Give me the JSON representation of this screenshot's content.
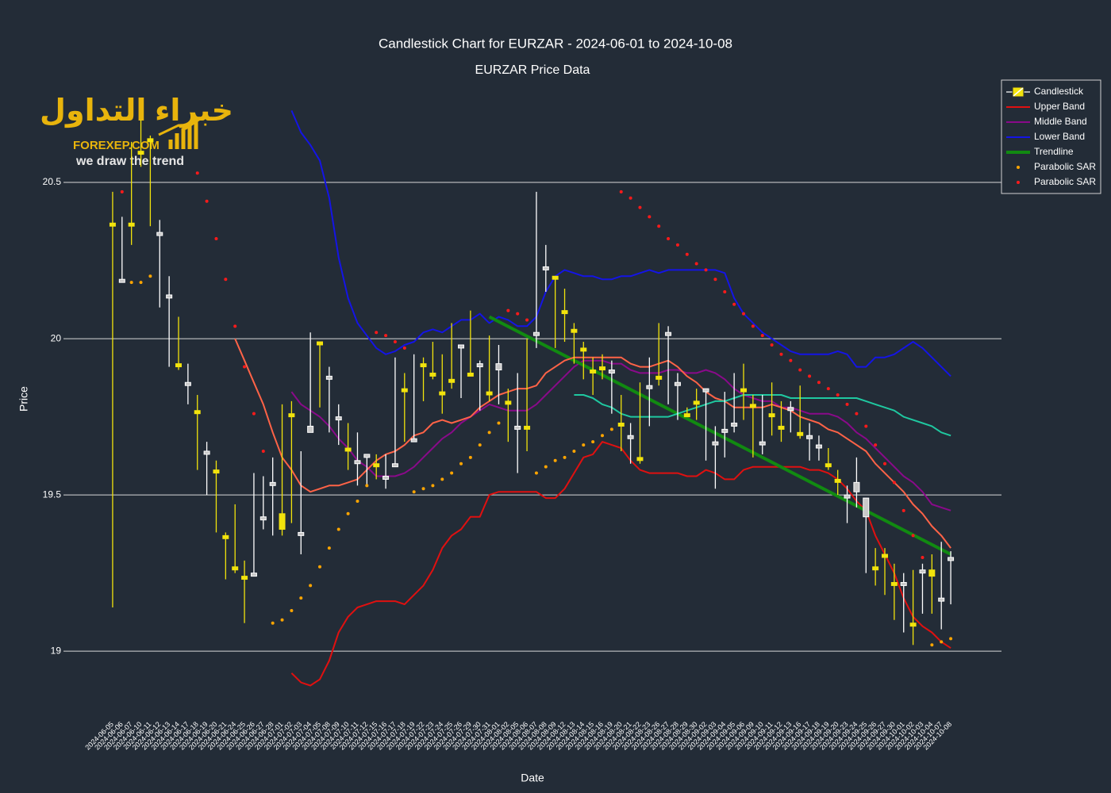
{
  "chart_data": {
    "type": "candlestick",
    "title": "Candlestick Chart for EURZAR - 2024-06-01 to 2024-10-08",
    "subtitle": "EURZAR Price Data",
    "xlabel": "Date",
    "ylabel": "Price",
    "watermark": [
      "خبراء التداول",
      "FOREXEP.COM",
      "we draw the trend"
    ],
    "ylim": [
      18.8,
      20.83
    ],
    "yticks": [
      19,
      19.5,
      20,
      20.5
    ],
    "grid": true,
    "legend_position": "top-right",
    "categories": [
      "2024-06-05",
      "2024-06-06",
      "2024-06-07",
      "2024-06-10",
      "2024-06-11",
      "2024-06-12",
      "2024-06-13",
      "2024-06-14",
      "2024-06-17",
      "2024-06-18",
      "2024-06-19",
      "2024-06-20",
      "2024-06-21",
      "2024-06-24",
      "2024-06-25",
      "2024-06-26",
      "2024-06-27",
      "2024-06-28",
      "2024-07-01",
      "2024-07-02",
      "2024-07-03",
      "2024-07-04",
      "2024-07-05",
      "2024-07-08",
      "2024-07-09",
      "2024-07-10",
      "2024-07-11",
      "2024-07-12",
      "2024-07-15",
      "2024-07-16",
      "2024-07-17",
      "2024-07-18",
      "2024-07-19",
      "2024-07-22",
      "2024-07-23",
      "2024-07-24",
      "2024-07-25",
      "2024-07-26",
      "2024-07-29",
      "2024-07-30",
      "2024-07-31",
      "2024-08-01",
      "2024-08-02",
      "2024-08-05",
      "2024-08-06",
      "2024-08-07",
      "2024-08-08",
      "2024-08-09",
      "2024-08-12",
      "2024-08-13",
      "2024-08-14",
      "2024-08-15",
      "2024-08-16",
      "2024-08-19",
      "2024-08-20",
      "2024-08-21",
      "2024-08-22",
      "2024-08-23",
      "2024-08-26",
      "2024-08-27",
      "2024-08-28",
      "2024-08-29",
      "2024-08-30",
      "2024-09-02",
      "2024-09-03",
      "2024-09-04",
      "2024-09-05",
      "2024-09-06",
      "2024-09-09",
      "2024-09-10",
      "2024-09-11",
      "2024-09-12",
      "2024-09-13",
      "2024-09-16",
      "2024-09-17",
      "2024-09-18",
      "2024-09-19",
      "2024-09-20",
      "2024-09-23",
      "2024-09-24",
      "2024-09-25",
      "2024-09-26",
      "2024-09-27",
      "2024-09-30",
      "2024-10-01",
      "2024-10-02",
      "2024-10-03",
      "2024-10-04",
      "2024-10-07",
      "2024-10-08"
    ],
    "candles": {
      "name": "Candlestick",
      "increasing_color": "#f2e30c",
      "decreasing_color": "#ffffff",
      "open": [
        20.36,
        20.19,
        20.36,
        20.59,
        20.63,
        20.34,
        20.14,
        19.91,
        19.86,
        19.76,
        19.64,
        19.57,
        19.36,
        19.26,
        19.23,
        19.25,
        19.43,
        19.54,
        19.39,
        19.75,
        19.38,
        19.72,
        19.98,
        19.88,
        19.75,
        19.64,
        19.61,
        19.63,
        19.59,
        19.56,
        19.6,
        19.83,
        19.68,
        19.91,
        19.88,
        19.82,
        19.86,
        19.98,
        19.88,
        19.92,
        19.82,
        19.92,
        19.79,
        19.72,
        19.71,
        20.02,
        20.23,
        20.19,
        20.08,
        20.02,
        19.96,
        19.89,
        19.9,
        19.9,
        19.72,
        19.69,
        19.61,
        19.85,
        19.87,
        20.02,
        19.86,
        19.75,
        19.79,
        19.84,
        19.67,
        19.71,
        19.73,
        19.83,
        19.78,
        19.67,
        19.75,
        19.71,
        19.78,
        19.69,
        19.69,
        19.66,
        19.59,
        19.54,
        19.5,
        19.54,
        19.49,
        19.26,
        19.3,
        19.21,
        19.22,
        19.08,
        19.26,
        19.24,
        19.17,
        19.3
      ],
      "high": [
        20.47,
        20.39,
        20.63,
        20.7,
        20.65,
        20.38,
        20.2,
        20.07,
        19.92,
        19.82,
        19.67,
        19.61,
        19.38,
        19.47,
        19.29,
        19.57,
        19.56,
        19.62,
        19.79,
        19.8,
        19.64,
        20.02,
        19.99,
        19.91,
        19.79,
        19.73,
        19.7,
        19.63,
        19.63,
        19.63,
        19.94,
        19.89,
        19.95,
        19.94,
        19.99,
        19.95,
        20.05,
        19.98,
        20.09,
        19.93,
        20.01,
        19.98,
        19.84,
        19.89,
        20.0,
        20.47,
        20.3,
        20.2,
        20.16,
        20.05,
        19.99,
        19.94,
        19.95,
        19.93,
        19.82,
        19.73,
        19.86,
        19.94,
        20.05,
        20.04,
        19.89,
        19.78,
        19.84,
        19.84,
        19.72,
        19.83,
        19.89,
        19.92,
        19.82,
        19.82,
        19.86,
        19.8,
        19.8,
        19.85,
        19.73,
        19.69,
        19.65,
        19.58,
        19.53,
        19.62,
        19.49,
        19.33,
        19.33,
        19.28,
        19.25,
        19.26,
        19.28,
        19.31,
        19.35,
        19.32
      ],
      "low": [
        19.14,
        20.18,
        20.3,
        20.55,
        20.36,
        20.1,
        19.91,
        19.9,
        19.79,
        19.58,
        19.5,
        19.38,
        19.23,
        19.25,
        19.09,
        19.24,
        19.39,
        19.37,
        19.37,
        19.41,
        19.31,
        19.7,
        19.78,
        19.7,
        19.66,
        19.58,
        19.53,
        19.53,
        19.55,
        19.52,
        19.59,
        19.67,
        19.67,
        19.8,
        19.87,
        19.76,
        19.84,
        19.81,
        19.88,
        19.77,
        19.8,
        19.79,
        19.67,
        19.57,
        19.64,
        19.97,
        20.15,
        19.97,
        19.99,
        19.92,
        19.87,
        19.82,
        19.87,
        19.76,
        19.64,
        19.6,
        19.6,
        19.72,
        19.85,
        19.79,
        19.74,
        19.75,
        19.74,
        19.61,
        19.52,
        19.62,
        19.7,
        19.74,
        19.62,
        19.63,
        19.69,
        19.67,
        19.7,
        19.68,
        19.61,
        19.61,
        19.58,
        19.5,
        19.41,
        19.46,
        19.25,
        19.21,
        19.18,
        19.1,
        19.06,
        19.02,
        19.12,
        19.12,
        19.07,
        19.15
      ],
      "close": [
        20.37,
        20.18,
        20.37,
        20.6,
        20.64,
        20.33,
        20.13,
        19.92,
        19.85,
        19.77,
        19.63,
        19.58,
        19.37,
        19.27,
        19.24,
        19.24,
        19.42,
        19.53,
        19.44,
        19.76,
        19.37,
        19.7,
        19.99,
        19.87,
        19.74,
        19.65,
        19.6,
        19.62,
        19.6,
        19.55,
        19.59,
        19.84,
        19.67,
        19.92,
        19.89,
        19.83,
        19.87,
        19.97,
        19.89,
        19.91,
        19.83,
        19.9,
        19.8,
        19.71,
        19.72,
        20.01,
        20.22,
        20.2,
        20.09,
        20.03,
        19.97,
        19.9,
        19.91,
        19.89,
        19.73,
        19.68,
        19.62,
        19.84,
        19.88,
        20.01,
        19.85,
        19.76,
        19.8,
        19.83,
        19.66,
        19.7,
        19.72,
        19.84,
        19.79,
        19.66,
        19.76,
        19.72,
        19.77,
        19.7,
        19.68,
        19.65,
        19.6,
        19.55,
        19.49,
        19.51,
        19.43,
        19.27,
        19.31,
        19.22,
        19.21,
        19.09,
        19.25,
        19.26,
        19.16,
        19.29
      ]
    },
    "series": [
      {
        "name": "Upper Band",
        "color": "#e01010",
        "mode": "lines",
        "values": [
          null,
          null,
          null,
          null,
          null,
          null,
          null,
          null,
          null,
          null,
          null,
          null,
          null,
          null,
          null,
          null,
          null,
          null,
          null,
          18.93,
          18.9,
          18.89,
          18.91,
          18.97,
          19.06,
          19.11,
          19.14,
          19.15,
          19.16,
          19.16,
          19.16,
          19.15,
          19.18,
          19.21,
          19.26,
          19.33,
          19.37,
          19.39,
          19.43,
          19.43,
          19.5,
          19.51,
          19.51,
          19.51,
          19.51,
          19.51,
          19.49,
          19.49,
          19.52,
          19.57,
          19.62,
          19.63,
          19.67,
          19.66,
          19.65,
          19.61,
          19.58,
          19.57,
          19.57,
          19.57,
          19.57,
          19.56,
          19.56,
          19.58,
          19.57,
          19.55,
          19.55,
          19.58,
          19.59,
          19.59,
          19.59,
          19.59,
          19.59,
          19.59,
          19.58,
          19.58,
          19.57,
          19.55,
          19.52,
          19.48,
          19.45,
          19.37,
          19.31,
          19.25,
          19.17,
          19.11,
          19.08,
          19.06,
          19.03,
          19.01
        ]
      },
      {
        "name": "Middle Band",
        "color": "#8a0a8a",
        "mode": "lines",
        "values": [
          null,
          null,
          null,
          null,
          null,
          null,
          null,
          null,
          null,
          null,
          null,
          null,
          null,
          null,
          null,
          null,
          null,
          null,
          null,
          19.83,
          19.79,
          19.77,
          19.75,
          19.72,
          19.68,
          19.65,
          19.61,
          19.59,
          19.56,
          19.56,
          19.56,
          19.57,
          19.59,
          19.62,
          19.65,
          19.68,
          19.7,
          19.73,
          19.75,
          19.77,
          19.79,
          19.78,
          19.77,
          19.77,
          19.77,
          19.79,
          19.82,
          19.85,
          19.88,
          19.91,
          19.93,
          19.93,
          19.93,
          19.92,
          19.92,
          19.9,
          19.89,
          19.89,
          19.89,
          19.9,
          19.9,
          19.89,
          19.89,
          19.9,
          19.89,
          19.87,
          19.84,
          19.82,
          19.81,
          19.8,
          19.8,
          19.78,
          19.78,
          19.77,
          19.76,
          19.76,
          19.76,
          19.75,
          19.73,
          19.7,
          19.68,
          19.65,
          19.62,
          19.59,
          19.56,
          19.54,
          19.51,
          19.47,
          19.46,
          19.45
        ]
      },
      {
        "name": "Lower Band",
        "color": "#1414e6",
        "mode": "lines",
        "values": [
          null,
          null,
          null,
          null,
          null,
          null,
          null,
          null,
          null,
          null,
          null,
          null,
          null,
          null,
          null,
          null,
          null,
          null,
          null,
          20.73,
          20.66,
          20.62,
          20.57,
          20.45,
          20.26,
          20.13,
          20.05,
          20.01,
          19.97,
          19.95,
          19.96,
          19.98,
          19.99,
          20.02,
          20.03,
          20.02,
          20.04,
          20.06,
          20.06,
          20.08,
          20.05,
          20.07,
          20.06,
          20.04,
          20.04,
          20.07,
          20.15,
          20.2,
          20.22,
          20.21,
          20.2,
          20.2,
          20.19,
          20.19,
          20.2,
          20.2,
          20.21,
          20.22,
          20.21,
          20.22,
          20.22,
          20.22,
          20.22,
          20.22,
          20.22,
          20.21,
          20.13,
          20.08,
          20.05,
          20.02,
          20.0,
          19.98,
          19.96,
          19.95,
          19.95,
          19.95,
          19.95,
          19.96,
          19.95,
          19.91,
          19.91,
          19.94,
          19.94,
          19.95,
          19.97,
          19.99,
          19.97,
          19.94,
          19.91,
          19.88
        ]
      },
      {
        "name": "Trendline",
        "color": "#118a11",
        "mode": "lines",
        "width": 4,
        "x": [
          "2024-07-31",
          "2024-10-08"
        ],
        "values": [
          20.07,
          19.31
        ]
      },
      {
        "name": "Parabolic SAR",
        "color": "#ffa500",
        "mode": "markers",
        "values": [
          null,
          null,
          20.18,
          20.18,
          20.2,
          null,
          null,
          null,
          null,
          null,
          null,
          null,
          null,
          null,
          null,
          null,
          null,
          19.09,
          19.1,
          19.13,
          19.17,
          19.21,
          19.27,
          19.33,
          19.39,
          19.44,
          19.48,
          19.53,
          null,
          null,
          null,
          null,
          19.51,
          19.52,
          19.53,
          19.55,
          19.57,
          19.6,
          19.62,
          19.66,
          19.7,
          19.73,
          null,
          null,
          null,
          19.57,
          19.59,
          19.61,
          19.62,
          19.64,
          19.66,
          19.67,
          19.69,
          19.71,
          null,
          null,
          null,
          null,
          null,
          null,
          null,
          null,
          null,
          null,
          null,
          null,
          null,
          null,
          null,
          null,
          null,
          null,
          null,
          null,
          null,
          null,
          null,
          null,
          null,
          null,
          null,
          null,
          null,
          null,
          null,
          null,
          null,
          19.02,
          19.03,
          19.04
        ]
      },
      {
        "name": "Parabolic SAR",
        "color": "#ff1a1a",
        "mode": "markers",
        "values": [
          null,
          20.47,
          null,
          null,
          null,
          null,
          null,
          null,
          null,
          20.53,
          20.44,
          20.32,
          20.19,
          20.04,
          19.91,
          19.76,
          19.64,
          null,
          null,
          null,
          null,
          null,
          null,
          null,
          null,
          null,
          null,
          null,
          20.02,
          20.01,
          19.99,
          19.97,
          null,
          null,
          null,
          null,
          null,
          null,
          null,
          null,
          null,
          null,
          20.09,
          20.08,
          20.06,
          null,
          null,
          null,
          null,
          null,
          null,
          null,
          null,
          null,
          20.47,
          20.45,
          20.42,
          20.39,
          20.36,
          20.32,
          20.3,
          20.27,
          20.24,
          20.22,
          20.19,
          20.15,
          20.11,
          20.08,
          20.04,
          20.01,
          19.98,
          19.95,
          19.93,
          19.9,
          19.88,
          19.86,
          19.84,
          19.82,
          19.79,
          19.76,
          19.72,
          19.66,
          19.6,
          19.54,
          19.45,
          19.37,
          19.3,
          null,
          null,
          null
        ]
      },
      {
        "color": "#ff6347",
        "mode": "lines",
        "values": [
          null,
          null,
          null,
          null,
          null,
          null,
          null,
          null,
          null,
          null,
          null,
          null,
          null,
          20.0,
          19.93,
          19.86,
          19.79,
          19.7,
          19.62,
          19.58,
          19.53,
          19.51,
          19.52,
          19.53,
          19.53,
          19.54,
          19.55,
          19.58,
          19.61,
          19.63,
          19.64,
          19.66,
          19.69,
          19.7,
          19.73,
          19.74,
          19.73,
          19.74,
          19.75,
          19.78,
          19.8,
          19.82,
          19.83,
          19.84,
          19.84,
          19.85,
          19.89,
          19.91,
          19.93,
          19.94,
          19.94,
          19.94,
          19.94,
          19.94,
          19.94,
          19.92,
          19.91,
          19.91,
          19.92,
          19.93,
          19.91,
          19.88,
          19.86,
          19.83,
          19.81,
          19.8,
          19.78,
          19.78,
          19.78,
          19.78,
          19.79,
          19.78,
          19.77,
          19.75,
          19.74,
          19.73,
          19.71,
          19.7,
          19.68,
          19.66,
          19.64,
          19.6,
          19.57,
          19.54,
          19.51,
          19.47,
          19.44,
          19.4,
          19.37,
          19.33
        ]
      },
      {
        "color": "#1fc8a0",
        "mode": "lines",
        "values": [
          null,
          null,
          null,
          null,
          null,
          null,
          null,
          null,
          null,
          null,
          null,
          null,
          null,
          null,
          null,
          null,
          null,
          null,
          null,
          null,
          null,
          null,
          null,
          null,
          null,
          null,
          null,
          null,
          null,
          null,
          null,
          null,
          null,
          null,
          null,
          null,
          null,
          null,
          null,
          null,
          null,
          null,
          null,
          null,
          null,
          null,
          null,
          null,
          null,
          19.82,
          19.82,
          19.81,
          19.79,
          19.78,
          19.76,
          19.75,
          19.75,
          19.75,
          19.75,
          19.75,
          19.76,
          19.77,
          19.78,
          19.79,
          19.8,
          19.8,
          19.81,
          19.82,
          19.82,
          19.82,
          19.82,
          19.82,
          19.81,
          19.81,
          19.81,
          19.81,
          19.81,
          19.81,
          19.81,
          19.81,
          19.8,
          19.79,
          19.78,
          19.77,
          19.75,
          19.74,
          19.73,
          19.72,
          19.7,
          19.69
        ]
      }
    ]
  }
}
